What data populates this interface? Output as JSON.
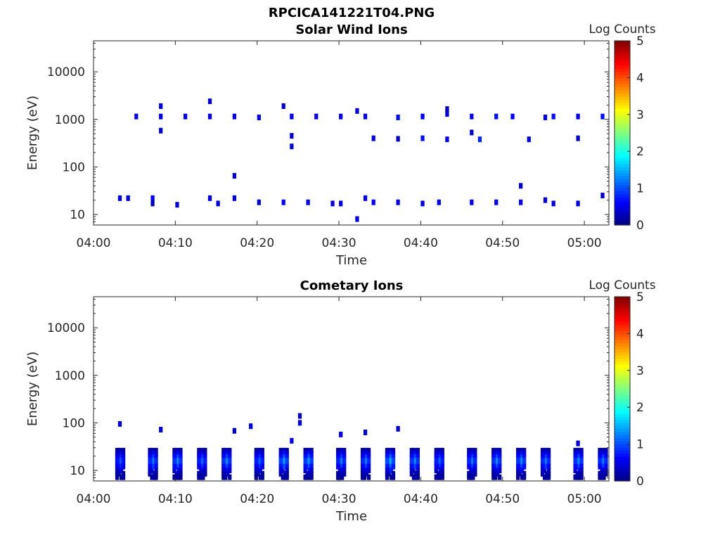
{
  "figure_title": "RPCICA141221T04.PNG",
  "chart_data": [
    {
      "type": "heatmap",
      "title": "Solar Wind Ions",
      "xlabel": "Time",
      "ylabel": "Energy (eV)",
      "yscale": "log",
      "ylim": [
        6,
        45000
      ],
      "xlim": [
        "04:00",
        "05:03"
      ],
      "x_ticks": [
        "04:00",
        "04:10",
        "04:20",
        "04:30",
        "04:40",
        "04:50",
        "05:00"
      ],
      "y_ticks": [
        "10",
        "100",
        "1000",
        "10000"
      ],
      "colorbar": {
        "label": "Log Counts",
        "range": [
          0,
          5
        ],
        "ticks": [
          "0",
          "1",
          "2",
          "3",
          "4",
          "5"
        ],
        "colormap": "jet"
      },
      "cells": [
        {
          "t": "04:03",
          "e": 22,
          "v": 0.5
        },
        {
          "t": "04:04",
          "e": 22,
          "v": 0.5
        },
        {
          "t": "04:05",
          "e": 1150,
          "v": 0.6
        },
        {
          "t": "04:07",
          "e": 22,
          "v": 0.6
        },
        {
          "t": "04:07",
          "e": 17,
          "v": 0.3
        },
        {
          "t": "04:08",
          "e": 1150,
          "v": 0.6
        },
        {
          "t": "04:08",
          "e": 1900,
          "v": 0.5
        },
        {
          "t": "04:08",
          "e": 580,
          "v": 0.4
        },
        {
          "t": "04:10",
          "e": 16,
          "v": 0.5
        },
        {
          "t": "04:11",
          "e": 1150,
          "v": 0.6
        },
        {
          "t": "04:14",
          "e": 22,
          "v": 0.5
        },
        {
          "t": "04:14",
          "e": 2400,
          "v": 0.5
        },
        {
          "t": "04:14",
          "e": 1150,
          "v": 0.6
        },
        {
          "t": "04:15",
          "e": 17,
          "v": 0.5
        },
        {
          "t": "04:17",
          "e": 65,
          "v": 0.4
        },
        {
          "t": "04:17",
          "e": 22,
          "v": 0.5
        },
        {
          "t": "04:17",
          "e": 1150,
          "v": 0.6
        },
        {
          "t": "04:20",
          "e": 18,
          "v": 0.5
        },
        {
          "t": "04:20",
          "e": 1100,
          "v": 0.6
        },
        {
          "t": "04:23",
          "e": 18,
          "v": 0.6
        },
        {
          "t": "04:23",
          "e": 1900,
          "v": 0.4
        },
        {
          "t": "04:24",
          "e": 1150,
          "v": 0.6
        },
        {
          "t": "04:24",
          "e": 450,
          "v": 0.4
        },
        {
          "t": "04:24",
          "e": 270,
          "v": 0.4
        },
        {
          "t": "04:26",
          "e": 18,
          "v": 0.6
        },
        {
          "t": "04:27",
          "e": 1150,
          "v": 0.6
        },
        {
          "t": "04:29",
          "e": 17,
          "v": 0.5
        },
        {
          "t": "04:30",
          "e": 17,
          "v": 0.5
        },
        {
          "t": "04:30",
          "e": 1150,
          "v": 0.6
        },
        {
          "t": "04:32",
          "e": 8,
          "v": 0.5
        },
        {
          "t": "04:32",
          "e": 1500,
          "v": 0.5
        },
        {
          "t": "04:33",
          "e": 22,
          "v": 0.6
        },
        {
          "t": "04:33",
          "e": 1150,
          "v": 0.6
        },
        {
          "t": "04:34",
          "e": 400,
          "v": 0.5
        },
        {
          "t": "04:34",
          "e": 18,
          "v": 0.6
        },
        {
          "t": "04:37",
          "e": 1100,
          "v": 0.7
        },
        {
          "t": "04:37",
          "e": 390,
          "v": 0.4
        },
        {
          "t": "04:37",
          "e": 18,
          "v": 0.6
        },
        {
          "t": "04:40",
          "e": 17,
          "v": 0.5
        },
        {
          "t": "04:40",
          "e": 1150,
          "v": 0.6
        },
        {
          "t": "04:40",
          "e": 400,
          "v": 0.7
        },
        {
          "t": "04:42",
          "e": 18,
          "v": 0.6
        },
        {
          "t": "04:43",
          "e": 1300,
          "v": 0.5
        },
        {
          "t": "04:43",
          "e": 1650,
          "v": 0.4
        },
        {
          "t": "04:43",
          "e": 380,
          "v": 0.6
        },
        {
          "t": "04:46",
          "e": 1150,
          "v": 0.6
        },
        {
          "t": "04:46",
          "e": 530,
          "v": 0.4
        },
        {
          "t": "04:46",
          "e": 18,
          "v": 0.6
        },
        {
          "t": "04:47",
          "e": 380,
          "v": 0.8
        },
        {
          "t": "04:49",
          "e": 18,
          "v": 0.6
        },
        {
          "t": "04:49",
          "e": 1150,
          "v": 0.7
        },
        {
          "t": "04:51",
          "e": 1150,
          "v": 0.6
        },
        {
          "t": "04:52",
          "e": 40,
          "v": 0.4
        },
        {
          "t": "04:52",
          "e": 18,
          "v": 0.6
        },
        {
          "t": "04:53",
          "e": 380,
          "v": 0.5
        },
        {
          "t": "04:55",
          "e": 1100,
          "v": 0.6
        },
        {
          "t": "04:55",
          "e": 20,
          "v": 0.5
        },
        {
          "t": "04:56",
          "e": 1150,
          "v": 0.7
        },
        {
          "t": "04:56",
          "e": 17,
          "v": 0.5
        },
        {
          "t": "04:59",
          "e": 1150,
          "v": 0.6
        },
        {
          "t": "04:59",
          "e": 17,
          "v": 0.5
        },
        {
          "t": "04:59",
          "e": 400,
          "v": 0.4
        },
        {
          "t": "05:02",
          "e": 25,
          "v": 0.4
        },
        {
          "t": "05:02",
          "e": 1150,
          "v": 0.7
        }
      ]
    },
    {
      "type": "heatmap",
      "title": "Cometary Ions",
      "xlabel": "Time",
      "ylabel": "Energy (eV)",
      "yscale": "log",
      "ylim": [
        6,
        45000
      ],
      "xlim": [
        "04:00",
        "05:03"
      ],
      "x_ticks": [
        "04:00",
        "04:10",
        "04:20",
        "04:30",
        "04:40",
        "04:50",
        "05:00"
      ],
      "y_ticks": [
        "10",
        "100",
        "1000",
        "10000"
      ],
      "colorbar": {
        "label": "Log Counts",
        "range": [
          0,
          5
        ],
        "ticks": [
          "0",
          "1",
          "2",
          "3",
          "4",
          "5"
        ],
        "colormap": "jet"
      },
      "bursts": [
        "04:03",
        "04:07",
        "04:10",
        "04:13",
        "04:16",
        "04:20",
        "04:23",
        "04:26",
        "04:30",
        "04:33",
        "04:36",
        "04:39",
        "04:42",
        "04:46",
        "04:49",
        "04:52",
        "04:55",
        "04:59",
        "05:02"
      ],
      "burst_peak": [
        1.2,
        1.4,
        1.5,
        1.3,
        1.5,
        1.3,
        1.6,
        1.6,
        1.4,
        1.4,
        1.7,
        1.5,
        1.3,
        1.4,
        1.5,
        1.5,
        1.4,
        1.5,
        1.4
      ],
      "isolated": [
        {
          "t": "04:03",
          "e": 95,
          "v": 0.5
        },
        {
          "t": "04:08",
          "e": 72,
          "v": 0.5
        },
        {
          "t": "04:17",
          "e": 68,
          "v": 0.4
        },
        {
          "t": "04:19",
          "e": 85,
          "v": 0.5
        },
        {
          "t": "04:24",
          "e": 42,
          "v": 0.6
        },
        {
          "t": "04:25",
          "e": 140,
          "v": 0.4
        },
        {
          "t": "04:25",
          "e": 100,
          "v": 0.5
        },
        {
          "t": "04:30",
          "e": 57,
          "v": 0.5
        },
        {
          "t": "04:33",
          "e": 63,
          "v": 0.4
        },
        {
          "t": "04:37",
          "e": 75,
          "v": 0.4
        },
        {
          "t": "04:59",
          "e": 37,
          "v": 0.5
        }
      ]
    }
  ]
}
